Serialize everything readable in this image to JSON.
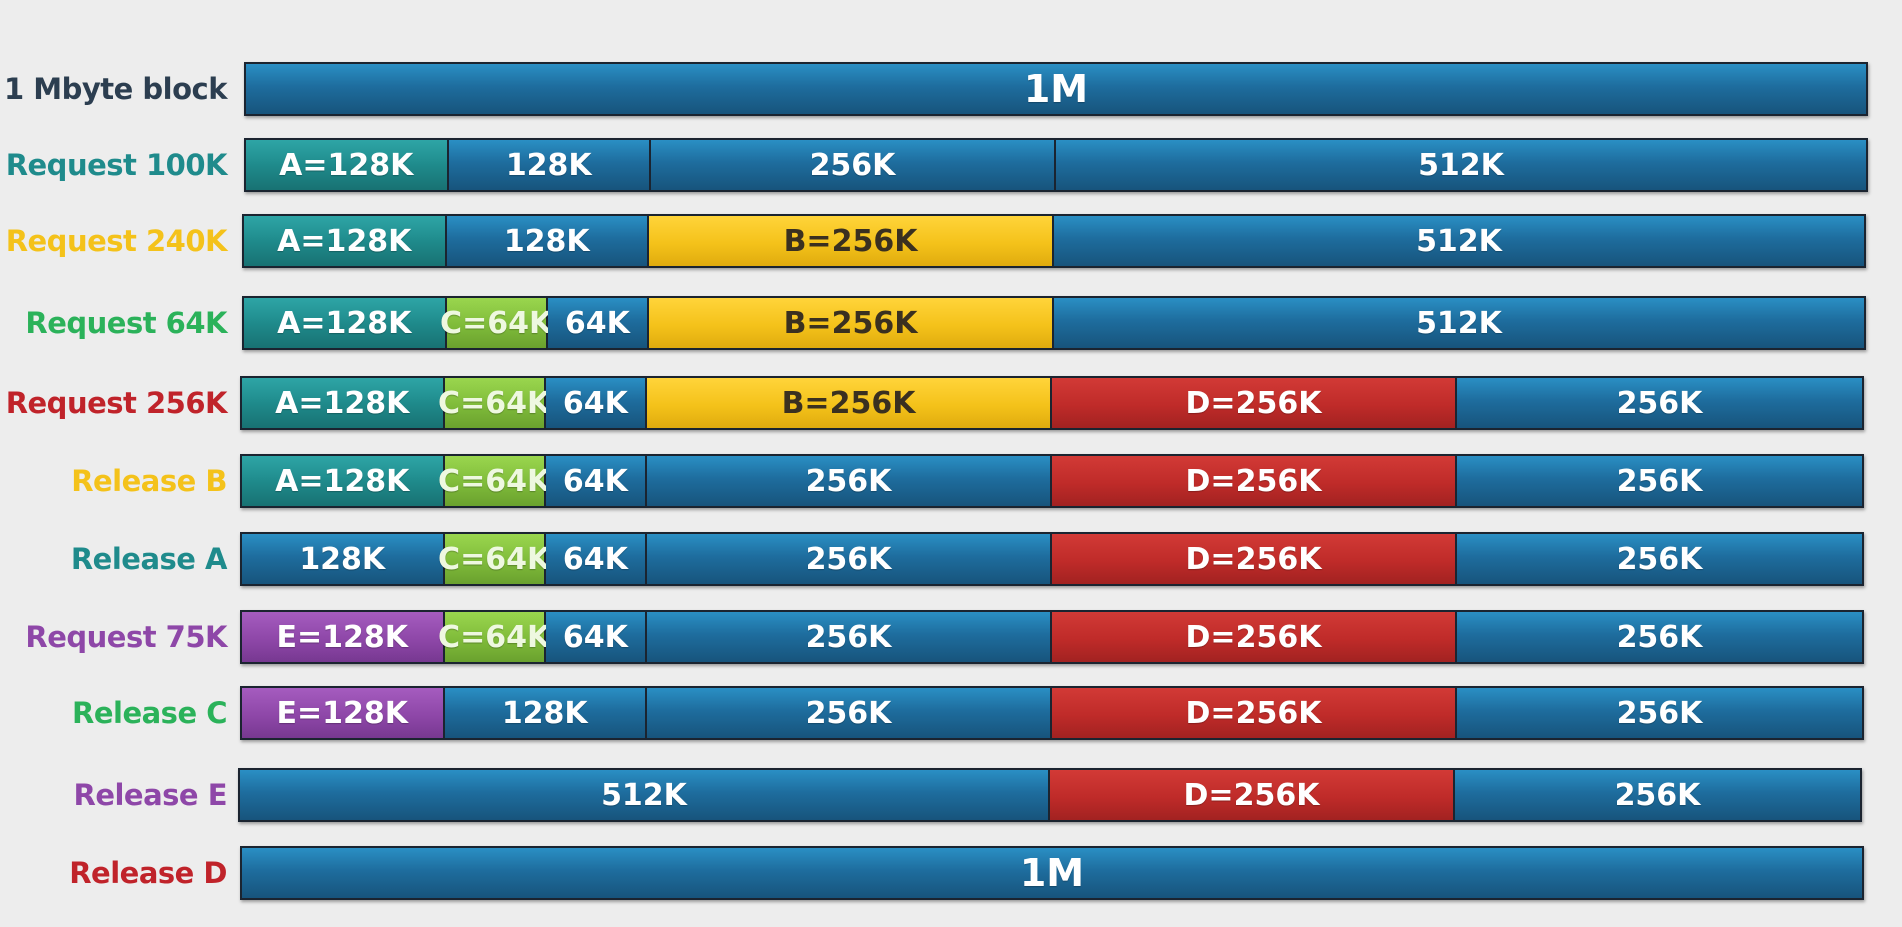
{
  "colors": {
    "free": "#1e6d9e",
    "A": "#1f8b8c",
    "B": "#f4c21a",
    "C": "#7fbb3a",
    "D": "#bf2b29",
    "E": "#8e47a8"
  },
  "rows": [
    {
      "label": "1 Mbyte block",
      "label_color": "#2c3e50",
      "segments": [
        {
          "text": "1M",
          "size_k": 1024,
          "kind": "free"
        }
      ]
    },
    {
      "label": "Request 100K",
      "label_color": "#1f8b8c",
      "segments": [
        {
          "text": "A=128K",
          "size_k": 128,
          "kind": "teal"
        },
        {
          "text": "128K",
          "size_k": 128,
          "kind": "free"
        },
        {
          "text": "256K",
          "size_k": 256,
          "kind": "free"
        },
        {
          "text": "512K",
          "size_k": 512,
          "kind": "free"
        }
      ]
    },
    {
      "label": "Request 240K",
      "label_color": "#f4c21a",
      "segments": [
        {
          "text": "A=128K",
          "size_k": 128,
          "kind": "teal"
        },
        {
          "text": "128K",
          "size_k": 128,
          "kind": "free"
        },
        {
          "text": "B=256K",
          "size_k": 256,
          "kind": "yellow"
        },
        {
          "text": "512K",
          "size_k": 512,
          "kind": "free"
        }
      ]
    },
    {
      "label": "Request 64K",
      "label_color": "#2bb25a",
      "segments": [
        {
          "text": "A=128K",
          "size_k": 128,
          "kind": "teal"
        },
        {
          "text": "C=64K",
          "size_k": 64,
          "kind": "green"
        },
        {
          "text": "64K",
          "size_k": 64,
          "kind": "free"
        },
        {
          "text": "B=256K",
          "size_k": 256,
          "kind": "yellow"
        },
        {
          "text": "512K",
          "size_k": 512,
          "kind": "free"
        }
      ]
    },
    {
      "label": "Request 256K",
      "label_color": "#c0232a",
      "segments": [
        {
          "text": "A=128K",
          "size_k": 128,
          "kind": "teal"
        },
        {
          "text": "C=64K",
          "size_k": 64,
          "kind": "green"
        },
        {
          "text": "64K",
          "size_k": 64,
          "kind": "free"
        },
        {
          "text": "B=256K",
          "size_k": 256,
          "kind": "yellow"
        },
        {
          "text": "D=256K",
          "size_k": 256,
          "kind": "red"
        },
        {
          "text": "256K",
          "size_k": 256,
          "kind": "free"
        }
      ]
    },
    {
      "label": "Release B",
      "label_color": "#f4c21a",
      "segments": [
        {
          "text": "A=128K",
          "size_k": 128,
          "kind": "teal"
        },
        {
          "text": "C=64K",
          "size_k": 64,
          "kind": "green"
        },
        {
          "text": "64K",
          "size_k": 64,
          "kind": "free"
        },
        {
          "text": "256K",
          "size_k": 256,
          "kind": "free"
        },
        {
          "text": "D=256K",
          "size_k": 256,
          "kind": "red"
        },
        {
          "text": "256K",
          "size_k": 256,
          "kind": "free"
        }
      ]
    },
    {
      "label": "Release A",
      "label_color": "#1f8b8c",
      "segments": [
        {
          "text": "128K",
          "size_k": 128,
          "kind": "free"
        },
        {
          "text": "C=64K",
          "size_k": 64,
          "kind": "green"
        },
        {
          "text": "64K",
          "size_k": 64,
          "kind": "free"
        },
        {
          "text": "256K",
          "size_k": 256,
          "kind": "free"
        },
        {
          "text": "D=256K",
          "size_k": 256,
          "kind": "red"
        },
        {
          "text": "256K",
          "size_k": 256,
          "kind": "free"
        }
      ]
    },
    {
      "label": "Request 75K",
      "label_color": "#8e47a8",
      "segments": [
        {
          "text": "E=128K",
          "size_k": 128,
          "kind": "purple"
        },
        {
          "text": "C=64K",
          "size_k": 64,
          "kind": "green"
        },
        {
          "text": "64K",
          "size_k": 64,
          "kind": "free"
        },
        {
          "text": "256K",
          "size_k": 256,
          "kind": "free"
        },
        {
          "text": "D=256K",
          "size_k": 256,
          "kind": "red"
        },
        {
          "text": "256K",
          "size_k": 256,
          "kind": "free"
        }
      ]
    },
    {
      "label": "Release C",
      "label_color": "#2bb25a",
      "segments": [
        {
          "text": "E=128K",
          "size_k": 128,
          "kind": "purple"
        },
        {
          "text": "128K",
          "size_k": 128,
          "kind": "free"
        },
        {
          "text": "256K",
          "size_k": 256,
          "kind": "free"
        },
        {
          "text": "D=256K",
          "size_k": 256,
          "kind": "red"
        },
        {
          "text": "256K",
          "size_k": 256,
          "kind": "free"
        }
      ]
    },
    {
      "label": "Release E",
      "label_color": "#8e47a8",
      "segments": [
        {
          "text": "512K",
          "size_k": 512,
          "kind": "free"
        },
        {
          "text": "D=256K",
          "size_k": 256,
          "kind": "red"
        },
        {
          "text": "256K",
          "size_k": 256,
          "kind": "free"
        }
      ]
    },
    {
      "label": "Release D",
      "label_color": "#c0232a",
      "segments": [
        {
          "text": "1M",
          "size_k": 1024,
          "kind": "free"
        }
      ]
    }
  ]
}
